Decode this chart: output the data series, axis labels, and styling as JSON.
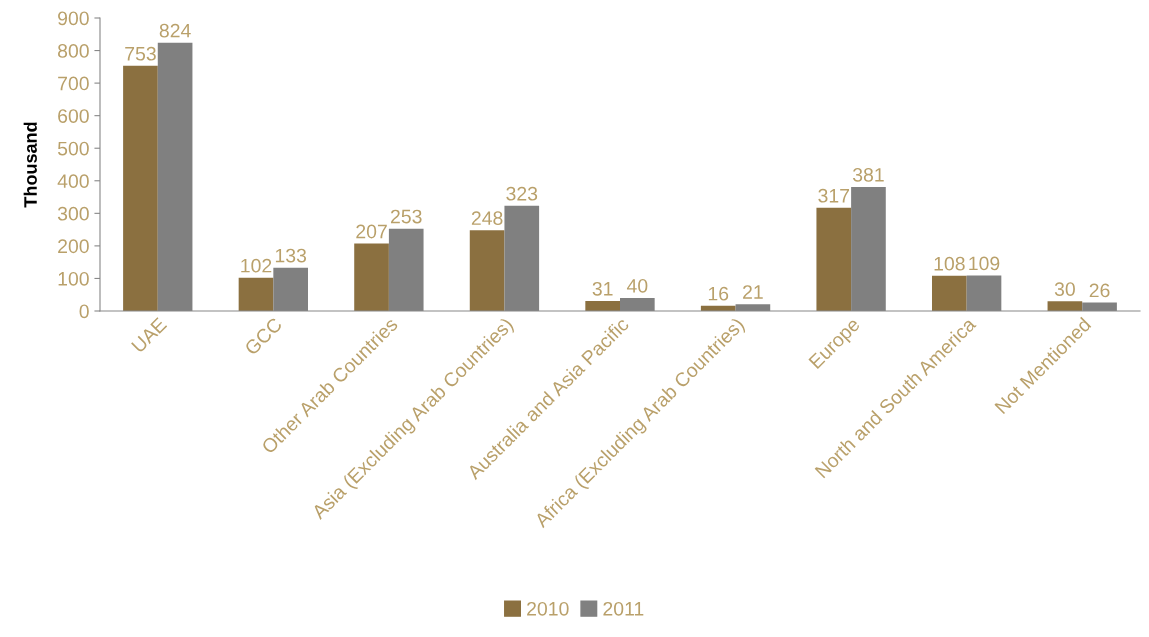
{
  "chart_data": {
    "type": "bar",
    "ylabel": "Thousand",
    "categories": [
      "UAE",
      "GCC",
      "Other Arab Countries",
      "Asia (Excluding Arab Countries)",
      "Australia and Asia Pacific",
      "Africa (Excluding Arab Countries)",
      "Europe",
      "North and South America",
      "Not Mentioned"
    ],
    "series": [
      {
        "name": "2010",
        "color": "#8b7040",
        "values": [
          753,
          102,
          207,
          248,
          31,
          16,
          317,
          108,
          30
        ]
      },
      {
        "name": "2011",
        "color": "#808080",
        "values": [
          824,
          133,
          253,
          323,
          40,
          21,
          381,
          109,
          26
        ]
      }
    ],
    "ylim": [
      0,
      900
    ],
    "yticks": [
      0,
      100,
      200,
      300,
      400,
      500,
      600,
      700,
      800,
      900
    ],
    "data_labels": true,
    "grid": false,
    "legend": "bottom"
  }
}
